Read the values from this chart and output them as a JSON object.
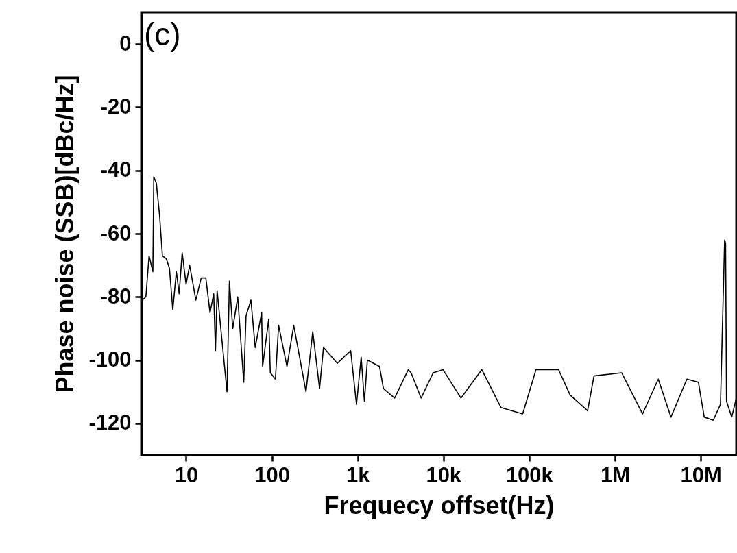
{
  "chart_data": {
    "type": "line",
    "xlabel": "Frequecy offset(Hz)",
    "ylabel": "Phase noise (SSB)[dBc/Hz]",
    "annotations": [
      "(c)"
    ],
    "log": "x",
    "grid": false,
    "line_style": "solid",
    "marker": "none",
    "xlim": [
      3,
      26000000
    ],
    "ylim": [
      -130,
      10
    ],
    "xticks": [
      10,
      100,
      {
        "value": 1000,
        "label": "1k"
      },
      {
        "value": 10000,
        "label": "10k"
      },
      {
        "value": 100000,
        "label": "100k"
      },
      {
        "value": 1000000,
        "label": "1M"
      },
      {
        "value": 10000000,
        "label": "10M"
      }
    ],
    "yticks": [
      0,
      -20,
      -40,
      -60,
      -80,
      -100,
      -120
    ],
    "series": [
      {
        "color": "#000000",
        "x": [
          3.1,
          3.4,
          3.7,
          4.1,
          4.2,
          4.5,
          4.9,
          5.3,
          5.9,
          6.4,
          7.0,
          7.7,
          8.3,
          9.0,
          10,
          11,
          13,
          15,
          17,
          19,
          21,
          22,
          23,
          30,
          32,
          35,
          40,
          47,
          50,
          57,
          64,
          76,
          78,
          92,
          96,
          110,
          120,
          150,
          180,
          250,
          300,
          360,
          400,
          580,
          830,
          970,
          1100,
          1200,
          1300,
          1800,
          2000,
          2700,
          3900,
          4200,
          5500,
          7600,
          9900,
          16000,
          28000,
          47000,
          84000,
          120000,
          220000,
          300000,
          480000,
          570000,
          1200000,
          2100000,
          3200000,
          4500000,
          6900000,
          9400000,
          11000000,
          14000000,
          17000000,
          19000000,
          19500000,
          20000000,
          23000000,
          26000000
        ],
        "values": [
          -81,
          -80,
          -67,
          -72,
          -42,
          -44,
          -54,
          -67,
          -68,
          -71,
          -84,
          -72,
          -79,
          -66,
          -76,
          -70,
          -81,
          -74,
          -74,
          -85,
          -79,
          -97,
          -78,
          -110,
          -75,
          -90,
          -80,
          -107,
          -86,
          -81,
          -96,
          -85,
          -102,
          -87,
          -104,
          -106,
          -89,
          -102,
          -89,
          -110,
          -91,
          -109,
          -96,
          -101,
          -97,
          -114,
          -99,
          -113,
          -100,
          -102,
          -109,
          -112,
          -103,
          -104,
          -112,
          -104,
          -103,
          -112,
          -103,
          -115,
          -117,
          -103,
          -103,
          -111,
          -116,
          -105,
          -104,
          -117,
          -106,
          -118,
          -106,
          -107,
          -118,
          -119,
          -114,
          -62,
          -63,
          -113,
          -118,
          -112
        ]
      }
    ]
  }
}
